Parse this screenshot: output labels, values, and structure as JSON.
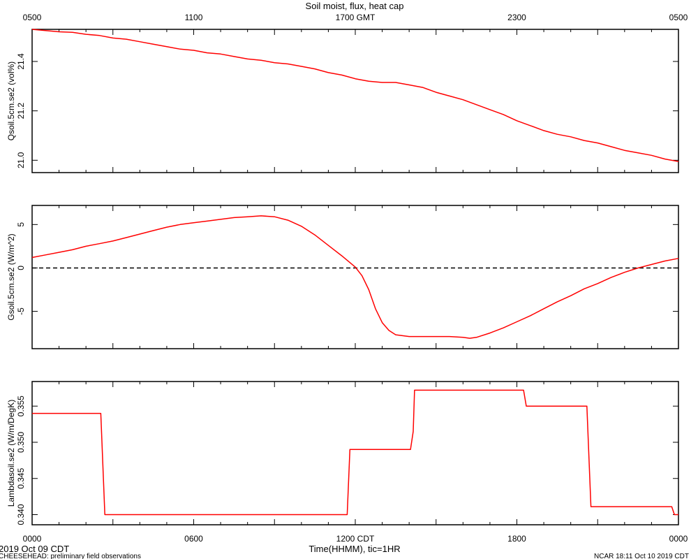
{
  "title": "Soil moist, flux, heat cap",
  "top_axis": {
    "tick_labels": [
      "0500",
      "1100",
      "1700 GMT",
      "2300",
      "0500"
    ],
    "tick_hours": [
      0,
      6,
      12,
      18,
      24
    ]
  },
  "bottom_axis": {
    "tick_labels": [
      "0000",
      "0600",
      "1200 CDT",
      "1800",
      "0000"
    ],
    "tick_hours": [
      0,
      6,
      12,
      18,
      24
    ],
    "label": "Time(HHMM), tic=1HR"
  },
  "footer": {
    "date": "2019 Oct 09 CDT",
    "project": "CHEESEHEAD: preliminary field observations",
    "credit": "NCAR 18:11 Oct 10 2019 CDT"
  },
  "colors": {
    "series": "#ff0000",
    "axes": "#000000",
    "zero_line": "#000000"
  },
  "chart_data": [
    {
      "type": "line",
      "ylabel": "Qsoil.5cm.se2 (vol%)",
      "ylim": [
        20.95,
        21.53
      ],
      "yticks": [
        21.0,
        21.2,
        21.4
      ],
      "ytick_labels": [
        "21.0",
        "21.2",
        "21.4"
      ],
      "grid": false,
      "series": [
        {
          "x": [
            0,
            0.5,
            1,
            1.5,
            2,
            2.5,
            3,
            3.5,
            4,
            4.5,
            5,
            5.5,
            6,
            6.5,
            7,
            7.5,
            8,
            8.5,
            9,
            9.5,
            10,
            10.5,
            11,
            11.5,
            12,
            12.5,
            13,
            13.5,
            14,
            14.5,
            15,
            15.5,
            16,
            16.5,
            17,
            17.5,
            18,
            18.5,
            19,
            19.5,
            20,
            20.5,
            21,
            21.5,
            22,
            22.5,
            23,
            23.5,
            24
          ],
          "y": [
            21.53,
            21.525,
            21.52,
            21.518,
            21.51,
            21.505,
            21.495,
            21.49,
            21.48,
            21.47,
            21.46,
            21.45,
            21.445,
            21.435,
            21.43,
            21.42,
            21.41,
            21.405,
            21.395,
            21.39,
            21.38,
            21.37,
            21.355,
            21.345,
            21.33,
            21.32,
            21.315,
            21.315,
            21.305,
            21.295,
            21.275,
            21.26,
            21.245,
            21.225,
            21.205,
            21.185,
            21.16,
            21.14,
            21.12,
            21.105,
            21.095,
            21.08,
            21.07,
            21.055,
            21.04,
            21.03,
            21.02,
            21.005,
            20.995
          ]
        }
      ]
    },
    {
      "type": "line",
      "ylabel": "Gsoil.5cm.se2 (W/m^2)",
      "ylim": [
        -9.3,
        7.2
      ],
      "yticks": [
        -5,
        0,
        5
      ],
      "ytick_labels": [
        "-5",
        "0",
        "5"
      ],
      "zero_line": true,
      "grid": false,
      "series": [
        {
          "x": [
            0,
            0.5,
            1,
            1.5,
            2,
            2.5,
            3,
            3.5,
            4,
            4.5,
            5,
            5.5,
            6,
            6.5,
            7,
            7.5,
            8,
            8.5,
            9,
            9.5,
            10,
            10.5,
            11,
            11.5,
            12,
            12.25,
            12.5,
            12.75,
            13,
            13.25,
            13.5,
            14,
            14.5,
            15,
            15.5,
            16,
            16.25,
            16.5,
            17,
            17.5,
            18,
            18.5,
            19,
            19.5,
            20,
            20.5,
            21,
            21.5,
            22,
            22.5,
            23,
            23.5,
            24
          ],
          "y": [
            1.2,
            1.5,
            1.8,
            2.1,
            2.5,
            2.8,
            3.1,
            3.5,
            3.9,
            4.3,
            4.7,
            5.0,
            5.2,
            5.4,
            5.6,
            5.8,
            5.9,
            6.0,
            5.9,
            5.5,
            4.8,
            3.8,
            2.6,
            1.4,
            0.1,
            -0.9,
            -2.5,
            -4.7,
            -6.3,
            -7.2,
            -7.7,
            -7.9,
            -7.9,
            -7.9,
            -7.9,
            -8.0,
            -8.1,
            -8.0,
            -7.5,
            -6.9,
            -6.2,
            -5.5,
            -4.7,
            -3.9,
            -3.2,
            -2.4,
            -1.8,
            -1.1,
            -0.5,
            0.0,
            0.4,
            0.8,
            1.1
          ]
        }
      ]
    },
    {
      "type": "line",
      "ylabel": "Lambdasoil.se2 (W/m/DegK)",
      "ylim": [
        0.3386,
        0.3584
      ],
      "yticks": [
        0.34,
        0.345,
        0.35,
        0.355
      ],
      "ytick_labels": [
        "0.340",
        "0.345",
        "0.350",
        "0.355"
      ],
      "grid": false,
      "series": [
        {
          "x": [
            0,
            2.55,
            2.7,
            11.7,
            11.8,
            14.05,
            14.15,
            14.2,
            18.25,
            18.35,
            20.6,
            20.75,
            23.75,
            23.85,
            24
          ],
          "y": [
            0.354,
            0.354,
            0.34,
            0.34,
            0.349,
            0.349,
            0.3515,
            0.3572,
            0.3572,
            0.355,
            0.355,
            0.3411,
            0.3411,
            0.34,
            0.34
          ]
        }
      ]
    }
  ]
}
